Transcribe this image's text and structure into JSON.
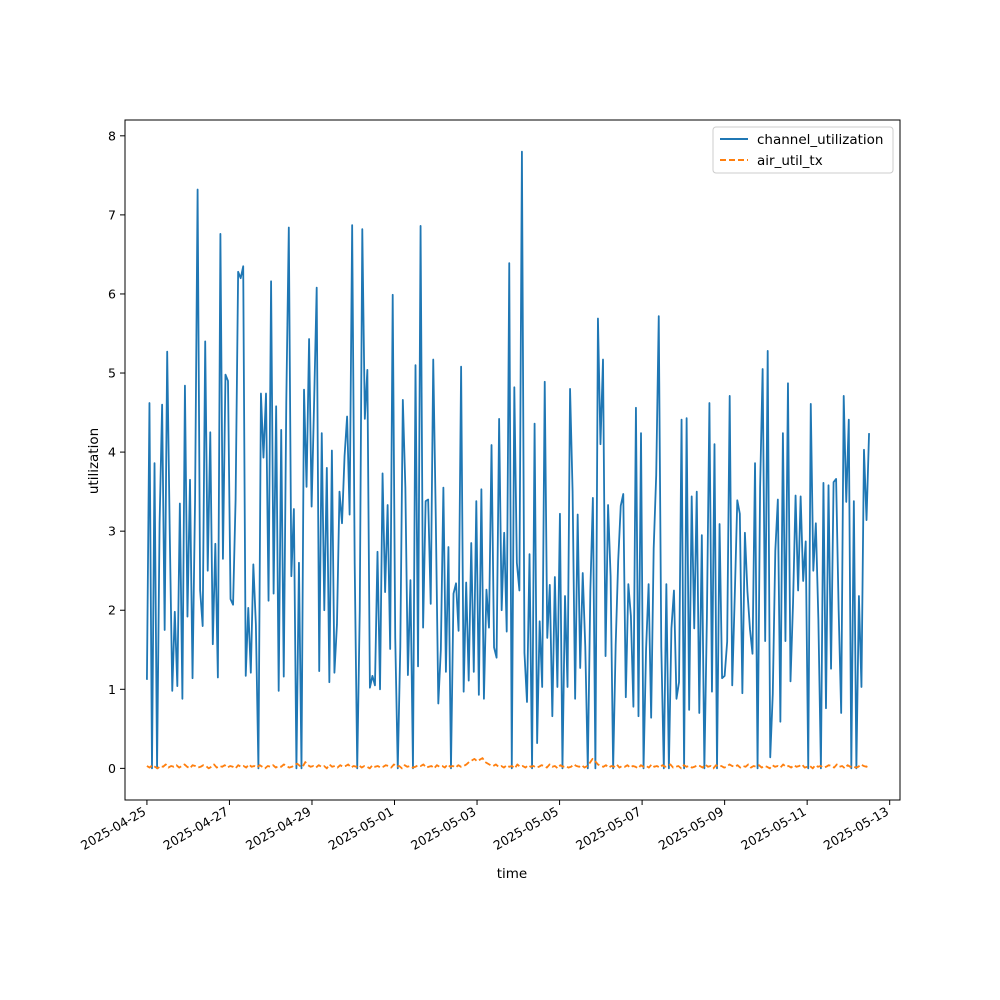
{
  "chart_data": {
    "type": "line",
    "xlabel": "time",
    "ylabel": "utilization",
    "xlim": [
      "2025-04-24T11:15:00",
      "2025-05-13T06:00:00"
    ],
    "ylim": [
      -0.4,
      8.2
    ],
    "grid": false,
    "legend": "top-right",
    "x_ticks": [
      "2025-04-25",
      "2025-04-27",
      "2025-04-29",
      "2025-05-01",
      "2025-05-03",
      "2025-05-05",
      "2025-05-07",
      "2025-05-09",
      "2025-05-11",
      "2025-05-13"
    ],
    "y_ticks": [
      0,
      1,
      2,
      3,
      4,
      5,
      6,
      7,
      8
    ],
    "x_start": "2025-04-25T00:00:00",
    "x_end": "2025-05-12T12:00:00",
    "series": [
      {
        "name": "channel_utilization",
        "color": "#1f77b4",
        "style": "solid",
        "values": [
          1.12,
          4.62,
          0,
          3.86,
          0,
          3.1,
          4.6,
          1.75,
          5.27,
          3.0,
          0.98,
          1.98,
          1.04,
          3.35,
          0.88,
          4.84,
          1.92,
          3.65,
          1.14,
          3.39,
          7.32,
          2.25,
          1.8,
          5.4,
          2.5,
          4.25,
          1.57,
          2.84,
          1.15,
          6.76,
          2.65,
          4.98,
          4.9,
          2.14,
          2.07,
          3.4,
          6.28,
          6.2,
          6.35,
          1.17,
          2.03,
          1.21,
          2.58,
          1.82,
          0,
          4.74,
          3.93,
          4.74,
          2.12,
          6.16,
          2.21,
          4.58,
          0.98,
          4.28,
          1.16,
          4.63,
          6.84,
          2.43,
          3.28,
          0,
          2.6,
          0,
          4.79,
          3.56,
          5.43,
          3.31,
          4.65,
          6.08,
          1.23,
          4.24,
          2.0,
          3.8,
          1.09,
          4.02,
          1.21,
          1.82,
          3.5,
          3.1,
          3.95,
          4.45,
          3.21,
          6.87,
          2.59,
          0,
          2.0,
          6.82,
          4.42,
          5.04,
          1.02,
          1.17,
          1.05,
          2.74,
          1.0,
          3.73,
          2.23,
          3.33,
          1.51,
          5.99,
          1.65,
          0,
          1.54,
          4.66,
          3.55,
          1.18,
          2.38,
          0,
          5.1,
          1.29,
          6.86,
          1.78,
          3.38,
          3.4,
          2.08,
          5.17,
          3.18,
          0.82,
          1.5,
          3.55,
          1.22,
          2.8,
          0,
          2.21,
          2.34,
          1.74,
          5.08,
          0.97,
          2.35,
          1.11,
          2.85,
          1.22,
          3.38,
          0.93,
          3.53,
          0.88,
          2.26,
          1.78,
          4.09,
          1.53,
          1.4,
          4.42,
          2.0,
          2.98,
          1.73,
          6.39,
          0,
          4.82,
          2.6,
          2.25,
          7.8,
          1.46,
          0.84,
          2.71,
          0,
          4.36,
          0.32,
          1.86,
          1.03,
          4.89,
          1.65,
          2.32,
          0.66,
          2.42,
          1.03,
          3.22,
          0,
          2.18,
          1.03,
          4.8,
          3.5,
          0.88,
          3.21,
          1.27,
          2.47,
          1.54,
          0,
          2.24,
          3.42,
          0,
          5.69,
          4.1,
          5.17,
          1.42,
          3.33,
          2.43,
          0,
          1.56,
          2.63,
          3.32,
          3.47,
          0.9,
          2.33,
          1.93,
          0.78,
          4.56,
          0.66,
          4.24,
          0,
          1.51,
          2.33,
          0.64,
          2.78,
          3.71,
          5.72,
          1.54,
          0,
          2.33,
          0,
          1.77,
          2.25,
          0.88,
          1.09,
          4.41,
          0,
          4.43,
          0.74,
          3.44,
          1.77,
          3.5,
          0.7,
          2.95,
          0,
          1.9,
          4.62,
          0.97,
          4.1,
          0,
          3.09,
          1.14,
          1.17,
          1.6,
          4.71,
          1.05,
          2.18,
          3.39,
          3.22,
          0.95,
          2.98,
          2.24,
          1.76,
          1.45,
          3.86,
          0,
          3.55,
          5.05,
          1.61,
          5.28,
          0.14,
          0.94,
          2.75,
          3.4,
          0.59,
          4.24,
          1.61,
          4.87,
          1.1,
          2.09,
          3.45,
          2.25,
          3.44,
          2.37,
          2.87,
          0,
          4.61,
          2.5,
          3.1,
          1.88,
          0,
          3.61,
          0.76,
          3.58,
          1.26,
          3.62,
          3.66,
          2.0,
          0.7,
          4.71,
          3.37,
          4.41,
          0,
          3.38,
          0,
          2.18,
          1.03,
          4.03,
          3.14,
          4.24
        ]
      },
      {
        "name": "air_util_tx",
        "color": "#ff7f0e",
        "style": "dashed",
        "values": [
          0.03,
          0.01,
          0.04,
          0.02,
          0.0,
          0.03,
          0.02,
          0.05,
          0.01,
          0.03,
          0.02,
          0.04,
          0.01,
          0.03,
          0.05,
          0.02,
          0.0,
          0.04,
          0.03,
          0.01,
          0.02,
          0.04,
          0.03,
          0.0,
          0.02,
          0.05,
          0.01,
          0.03,
          0.02,
          0.04,
          0.01,
          0.03,
          0.02,
          0.0,
          0.04,
          0.02,
          0.03,
          0.01,
          0.05,
          0.02,
          0.03,
          0.01,
          0.04,
          0.02,
          0.0,
          0.03,
          0.02,
          0.04,
          0.01,
          0.03,
          0.02,
          0.05,
          0.03,
          0.01,
          0.02,
          0.04,
          0.06,
          0.03,
          0.02,
          0.08,
          0.04,
          0.02,
          0.03,
          0.01,
          0.04,
          0.02,
          0.03,
          0.0,
          0.05,
          0.02,
          0.03,
          0.01,
          0.04,
          0.02,
          0.03,
          0.05,
          0.01,
          0.03,
          0.02,
          0.04,
          0.01,
          0.03,
          0.02,
          0.0,
          0.04,
          0.02,
          0.03,
          0.01,
          0.02,
          0.04,
          0.03,
          0.01,
          0.05,
          0.02,
          0.03,
          0.0,
          0.04,
          0.02,
          0.03,
          0.01,
          0.02,
          0.04,
          0.03,
          0.05,
          0.01,
          0.02,
          0.03,
          0.0,
          0.04,
          0.02,
          0.03,
          0.01,
          0.05,
          0.02,
          0.03,
          0.01,
          0.04,
          0.02,
          0.03,
          0.05,
          0.08,
          0.1,
          0.12,
          0.09,
          0.11,
          0.13,
          0.08,
          0.06,
          0.04,
          0.03,
          0.05,
          0.02,
          0.03,
          0.01,
          0.04,
          0.02,
          0.03,
          0.0,
          0.05,
          0.02,
          0.03,
          0.01,
          0.04,
          0.02,
          0.03,
          0.01,
          0.02,
          0.04,
          0.03,
          0.01,
          0.05,
          0.02,
          0.03,
          0.0,
          0.04,
          0.02,
          0.03,
          0.01,
          0.02,
          0.05,
          0.03,
          0.02,
          0.04,
          0.01,
          0.03,
          0.07,
          0.12,
          0.09,
          0.05,
          0.03,
          0.02,
          0.04,
          0.01,
          0.03,
          0.02,
          0.05,
          0.01,
          0.03,
          0.02,
          0.04,
          0.01,
          0.03,
          0.02,
          0.0,
          0.04,
          0.02,
          0.03,
          0.01,
          0.05,
          0.02,
          0.03,
          0.01,
          0.04,
          0.02,
          0.03,
          0.05,
          0.01,
          0.02,
          0.03,
          0.0,
          0.04,
          0.02,
          0.03,
          0.01,
          0.02,
          0.04,
          0.03,
          0.01,
          0.05,
          0.02,
          0.03,
          0.0,
          0.04,
          0.02,
          0.03,
          0.01,
          0.02,
          0.05,
          0.03,
          0.02,
          0.04,
          0.01,
          0.03,
          0.02,
          0.05,
          0.01,
          0.03,
          0.02,
          0.04,
          0.01,
          0.03,
          0.02,
          0.0,
          0.04,
          0.02,
          0.03,
          0.01,
          0.05,
          0.02,
          0.03,
          0.01,
          0.04,
          0.02,
          0.03,
          0.05,
          0.01,
          0.02,
          0.03,
          0.0,
          0.04,
          0.02,
          0.03,
          0.01,
          0.02,
          0.04,
          0.03,
          0.01,
          0.05,
          0.02,
          0.03,
          0.0,
          0.04,
          0.02,
          0.03,
          0.01,
          0.02,
          0.05,
          0.03,
          0.02,
          0.04
        ]
      }
    ]
  }
}
